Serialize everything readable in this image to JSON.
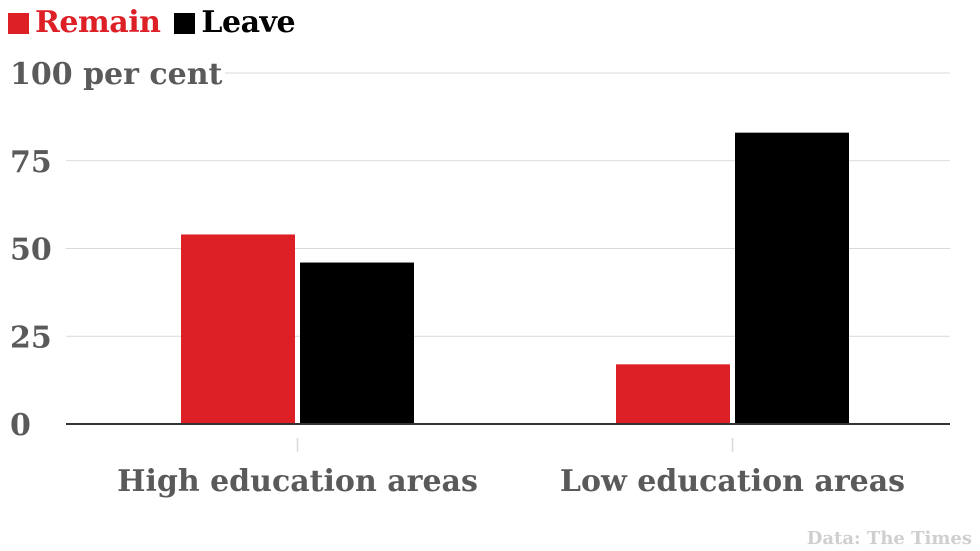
{
  "colors": {
    "remain": "#dd1f26",
    "leave": "#000000",
    "text": "#5a5a5a",
    "grid": "#d9d9d9",
    "axis": "#333333",
    "source": "#cfcfcf"
  },
  "legend": [
    {
      "label": "Remain",
      "color": "#dd1f26"
    },
    {
      "label": "Leave",
      "color": "#000000"
    }
  ],
  "source": "Data: The Times",
  "chart_data": {
    "type": "bar",
    "title": "",
    "xlabel": "",
    "ylabel": "",
    "categories": [
      "High education areas",
      "Low education areas"
    ],
    "series": [
      {
        "name": "Remain",
        "values": [
          54,
          17
        ]
      },
      {
        "name": "Leave",
        "values": [
          46,
          83
        ]
      }
    ],
    "ylim": [
      0,
      100
    ],
    "yticks": [
      0,
      25,
      50,
      75,
      100
    ],
    "ytick_labels": [
      "0",
      "25",
      "50",
      "75",
      "100 per cent"
    ],
    "grid": true,
    "legend_position": "top-left"
  }
}
